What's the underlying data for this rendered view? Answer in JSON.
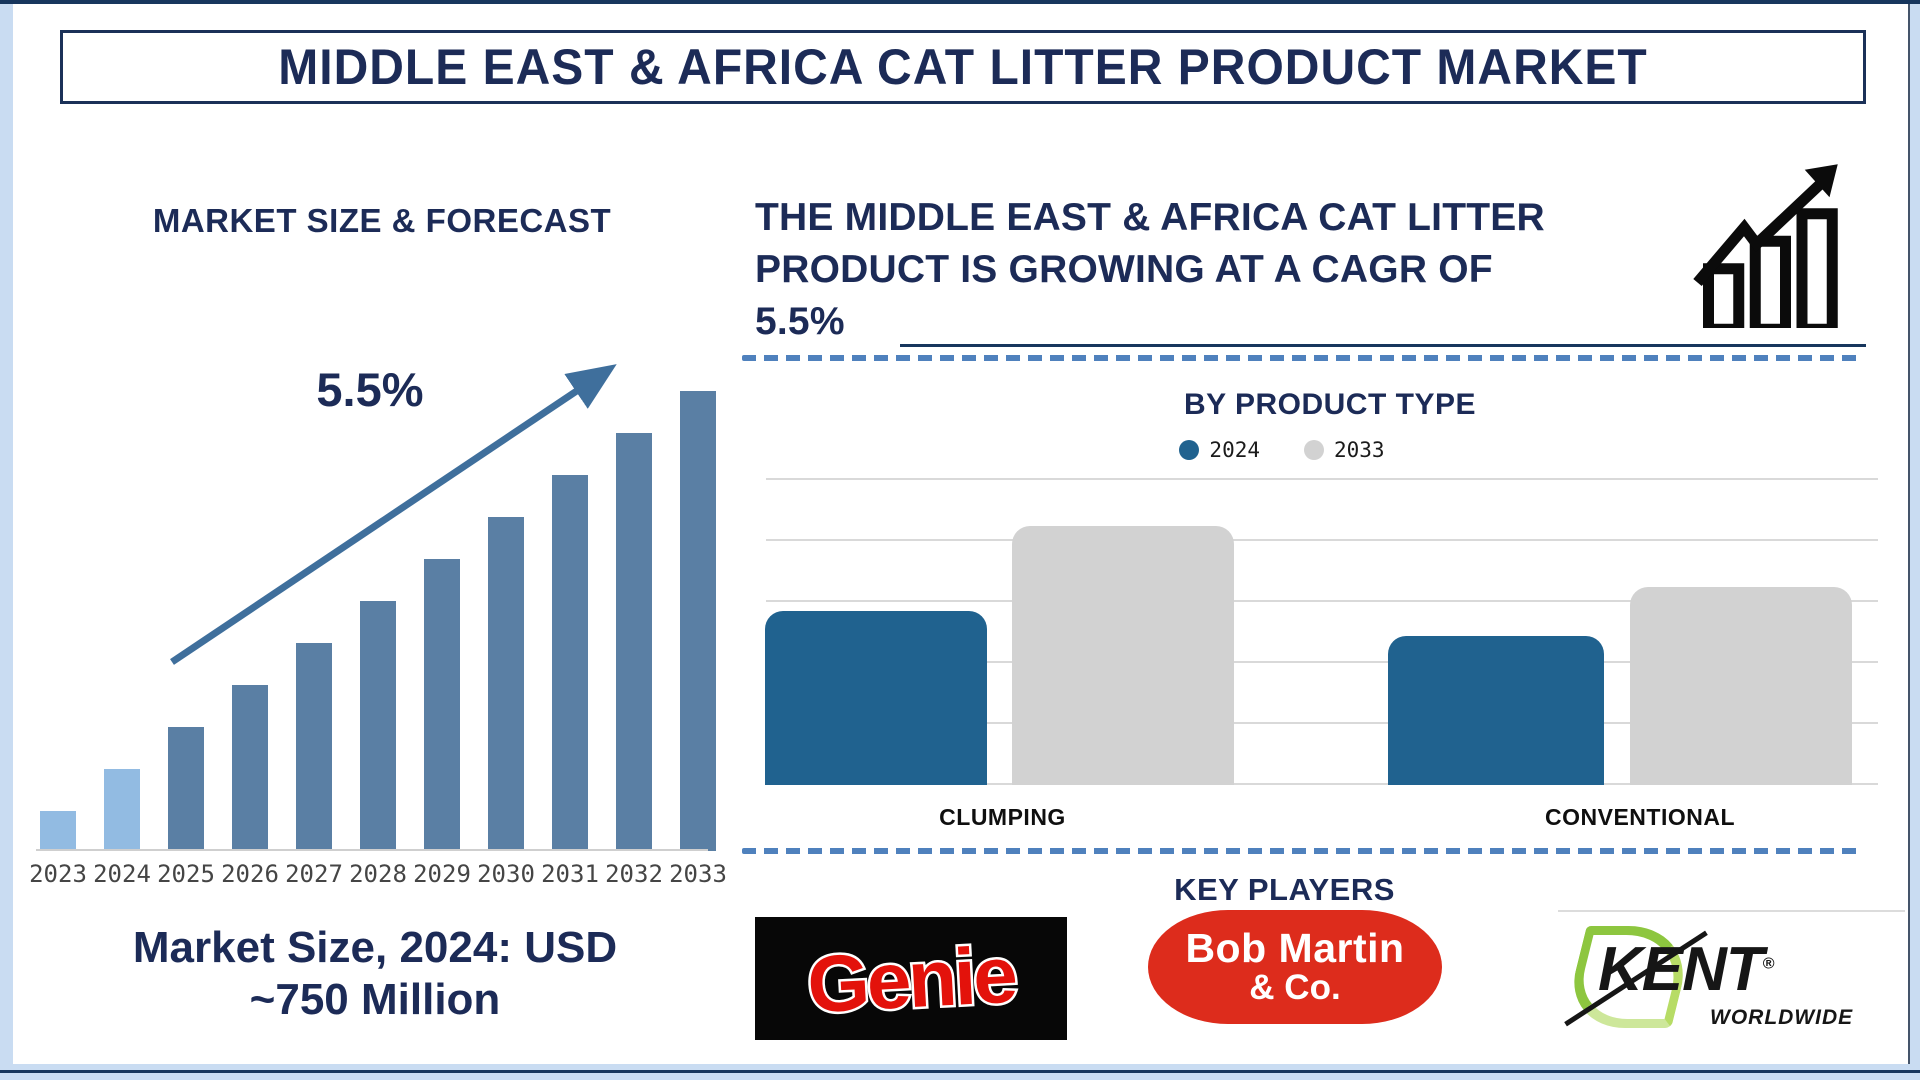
{
  "page": {
    "title": "MIDDLE EAST & AFRICA CAT LITTER PRODUCT MARKET"
  },
  "left_panel": {
    "heading": "MARKET SIZE & FORECAST",
    "cagr_annotation": "5.5%",
    "caption_line1": "Market Size, 2024: USD",
    "caption_line2": "~750 Million"
  },
  "right_panel": {
    "intro_text": "THE MIDDLE EAST & AFRICA CAT LITTER\nPRODUCT IS GROWING AT A CAGR OF\n5.5%",
    "growth_icon": "bar-chart-rising-arrow-icon",
    "key_players_heading": "KEY PLAYERS",
    "key_players": [
      {
        "name": "Genie"
      },
      {
        "name_line1": "Bob Martin",
        "name_line2": "& Co."
      },
      {
        "name": "KENT",
        "registered": "®",
        "subtitle": "WORLDWIDE"
      }
    ]
  },
  "chart_data": [
    {
      "type": "bar",
      "title": "MARKET SIZE & FORECAST",
      "categories": [
        "2023",
        "2024",
        "2025",
        "2026",
        "2027",
        "2028",
        "2029",
        "2030",
        "2031",
        "2032",
        "2033"
      ],
      "values_relative": [
        8.7,
        17.8,
        27.0,
        36.1,
        45.2,
        54.3,
        63.5,
        72.6,
        81.7,
        90.9,
        100
      ],
      "value_note": "no y-axis shown; values are relative bar heights normalized to 2033 = 100; linear growth ramp",
      "annotation": "5.5%",
      "annotation_meaning": "CAGR shown beside rising trend arrow",
      "caption": "Market Size, 2024: USD ~750 Million",
      "bar_color_historical": "#92bbe2",
      "bar_color_forecast": "#5a7fa4",
      "historical_years": [
        "2023",
        "2024"
      ],
      "grid": "off",
      "legend_position": "none"
    },
    {
      "type": "bar",
      "grouped": true,
      "title": "BY PRODUCT TYPE",
      "categories": [
        "CLUMPING",
        "CONVENTIONAL"
      ],
      "series": [
        {
          "name": "2024",
          "color": "#20628f",
          "values_relative": [
            2.85,
            2.45
          ]
        },
        {
          "name": "2033",
          "color": "#d2d2d2",
          "values_relative": [
            4.25,
            3.25
          ]
        }
      ],
      "value_note": "no y-axis labels shown; values estimated in horizontal-gridline units (grid spacing = 1 unit)",
      "ylim": [
        0,
        5
      ],
      "grid": "horizontal",
      "legend_position": "top-center"
    }
  ],
  "colors": {
    "navy_text": "#1c2b57",
    "frame_light_blue": "#c9dcf2",
    "frame_navy": "#17365d",
    "forecast_bar": "#5a7fa4",
    "forecast_bar_light": "#92bbe2",
    "trend_arrow": "#3f6f9c",
    "series_2024_blue": "#20628f",
    "series_2033_gray": "#d2d2d2",
    "dashed_separator": "#4f81bd",
    "genie_red": "#e3120b",
    "genie_background": "#070707",
    "bob_martin_red": "#dd2c1c",
    "kent_green": "#8dc63f",
    "kent_black": "#161616"
  }
}
